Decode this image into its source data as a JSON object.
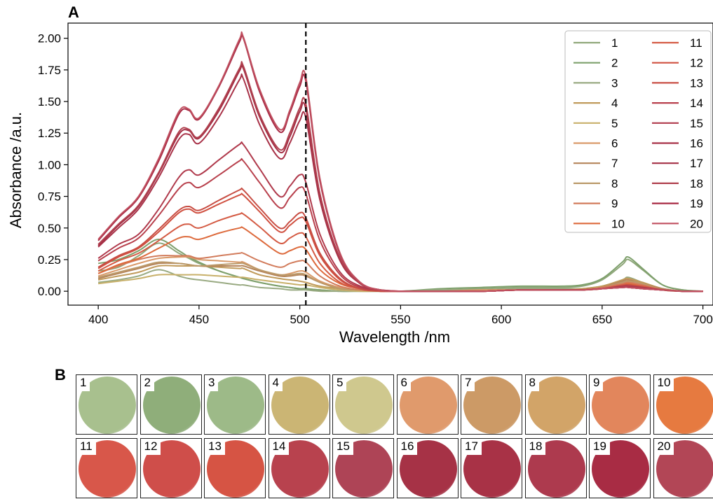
{
  "panel_a_label": "A",
  "panel_b_label": "B",
  "chart_data": {
    "type": "line",
    "xlabel": "Wavelength /nm",
    "ylabel": "Absorbance /a.u.",
    "xlim": [
      385,
      705
    ],
    "ylim": [
      -0.11,
      2.12
    ],
    "xticks": [
      400,
      450,
      500,
      550,
      600,
      650,
      700
    ],
    "yticks": [
      0.0,
      0.25,
      0.5,
      0.75,
      1.0,
      1.25,
      1.5,
      1.75,
      2.0
    ],
    "xtick_labels": [
      "400",
      "450",
      "500",
      "550",
      "600",
      "650",
      "700"
    ],
    "ytick_labels": [
      "0.00",
      "0.25",
      "0.50",
      "0.75",
      "1.00",
      "1.25",
      "1.50",
      "1.75",
      "2.00"
    ],
    "vline_x": 503,
    "legend_position": "top-right",
    "legend_columns": 2,
    "x": [
      400,
      410,
      420,
      430,
      440,
      445,
      450,
      460,
      470,
      472,
      480,
      490,
      495,
      500,
      503,
      510,
      520,
      530,
      540,
      550,
      570,
      590,
      610,
      630,
      640,
      650,
      660,
      663,
      670,
      680,
      690,
      700
    ],
    "series": [
      {
        "name": "1",
        "color": "#8fa77a",
        "values": [
          0.16,
          0.19,
          0.28,
          0.38,
          0.3,
          0.26,
          0.22,
          0.16,
          0.11,
          0.1,
          0.07,
          0.04,
          0.03,
          0.02,
          0.02,
          0.01,
          0.0,
          0.0,
          0.0,
          0.0,
          0.01,
          0.02,
          0.03,
          0.03,
          0.04,
          0.09,
          0.21,
          0.25,
          0.17,
          0.05,
          0.01,
          0.0
        ]
      },
      {
        "name": "2",
        "color": "#7ea06c",
        "values": [
          0.22,
          0.25,
          0.32,
          0.41,
          0.32,
          0.27,
          0.23,
          0.16,
          0.11,
          0.1,
          0.07,
          0.04,
          0.03,
          0.02,
          0.02,
          0.01,
          0.0,
          0.0,
          0.0,
          0.0,
          0.02,
          0.03,
          0.04,
          0.04,
          0.05,
          0.1,
          0.23,
          0.27,
          0.18,
          0.05,
          0.01,
          0.0
        ]
      },
      {
        "name": "3",
        "color": "#99aa82",
        "values": [
          0.07,
          0.09,
          0.12,
          0.17,
          0.12,
          0.1,
          0.09,
          0.07,
          0.05,
          0.05,
          0.03,
          0.02,
          0.01,
          0.01,
          0.01,
          0.0,
          0.0,
          0.0,
          0.0,
          0.0,
          0.01,
          0.01,
          0.02,
          0.02,
          0.02,
          0.04,
          0.09,
          0.11,
          0.07,
          0.02,
          0.0,
          0.0
        ]
      },
      {
        "name": "4",
        "color": "#c09a5a",
        "values": [
          0.09,
          0.12,
          0.15,
          0.2,
          0.2,
          0.2,
          0.2,
          0.19,
          0.18,
          0.18,
          0.13,
          0.1,
          0.09,
          0.08,
          0.07,
          0.04,
          0.02,
          0.01,
          0.0,
          0.0,
          0.0,
          0.01,
          0.01,
          0.01,
          0.02,
          0.04,
          0.09,
          0.1,
          0.07,
          0.02,
          0.0,
          0.0
        ]
      },
      {
        "name": "5",
        "color": "#c8b06a",
        "values": [
          0.06,
          0.08,
          0.1,
          0.13,
          0.13,
          0.13,
          0.13,
          0.12,
          0.11,
          0.11,
          0.09,
          0.07,
          0.06,
          0.05,
          0.05,
          0.03,
          0.01,
          0.0,
          0.0,
          0.0,
          0.0,
          0.0,
          0.01,
          0.01,
          0.01,
          0.03,
          0.06,
          0.07,
          0.05,
          0.01,
          0.0,
          0.0
        ]
      },
      {
        "name": "6",
        "color": "#d99a6a",
        "values": [
          0.12,
          0.17,
          0.22,
          0.26,
          0.27,
          0.27,
          0.25,
          0.24,
          0.23,
          0.23,
          0.17,
          0.13,
          0.14,
          0.16,
          0.15,
          0.08,
          0.03,
          0.01,
          0.0,
          0.0,
          0.0,
          0.01,
          0.01,
          0.01,
          0.01,
          0.03,
          0.07,
          0.08,
          0.05,
          0.01,
          0.0,
          0.0
        ]
      },
      {
        "name": "7",
        "color": "#b5845a",
        "values": [
          0.1,
          0.14,
          0.18,
          0.22,
          0.22,
          0.21,
          0.2,
          0.2,
          0.2,
          0.2,
          0.16,
          0.12,
          0.12,
          0.13,
          0.12,
          0.07,
          0.02,
          0.01,
          0.0,
          0.0,
          0.0,
          0.0,
          0.01,
          0.01,
          0.01,
          0.03,
          0.08,
          0.09,
          0.06,
          0.02,
          0.0,
          0.0
        ]
      },
      {
        "name": "8",
        "color": "#bb9a6a",
        "values": [
          0.11,
          0.15,
          0.19,
          0.23,
          0.22,
          0.21,
          0.2,
          0.21,
          0.22,
          0.22,
          0.17,
          0.13,
          0.13,
          0.14,
          0.13,
          0.07,
          0.02,
          0.01,
          0.0,
          0.0,
          0.0,
          0.0,
          0.01,
          0.01,
          0.01,
          0.03,
          0.07,
          0.08,
          0.06,
          0.01,
          0.0,
          0.0
        ]
      },
      {
        "name": "9",
        "color": "#d27c5c",
        "values": [
          0.14,
          0.2,
          0.25,
          0.28,
          0.28,
          0.28,
          0.26,
          0.28,
          0.3,
          0.3,
          0.24,
          0.19,
          0.22,
          0.24,
          0.23,
          0.12,
          0.04,
          0.01,
          0.0,
          0.0,
          0.0,
          0.0,
          0.01,
          0.01,
          0.01,
          0.03,
          0.06,
          0.07,
          0.05,
          0.01,
          0.0,
          0.0
        ]
      },
      {
        "name": "10",
        "color": "#dd6a3c",
        "values": [
          0.14,
          0.21,
          0.26,
          0.34,
          0.42,
          0.43,
          0.41,
          0.46,
          0.5,
          0.5,
          0.41,
          0.3,
          0.32,
          0.35,
          0.33,
          0.17,
          0.06,
          0.02,
          0.0,
          0.0,
          0.0,
          0.0,
          0.01,
          0.01,
          0.01,
          0.02,
          0.05,
          0.06,
          0.04,
          0.01,
          0.0,
          0.0
        ]
      },
      {
        "name": "11",
        "color": "#d45b44",
        "values": [
          0.16,
          0.24,
          0.3,
          0.4,
          0.51,
          0.53,
          0.5,
          0.56,
          0.61,
          0.61,
          0.51,
          0.38,
          0.42,
          0.46,
          0.43,
          0.22,
          0.07,
          0.02,
          0.0,
          0.0,
          0.0,
          0.0,
          0.01,
          0.01,
          0.01,
          0.02,
          0.05,
          0.05,
          0.04,
          0.01,
          0.0,
          0.0
        ]
      },
      {
        "name": "12",
        "color": "#d05040",
        "values": [
          0.18,
          0.27,
          0.34,
          0.47,
          0.62,
          0.65,
          0.62,
          0.69,
          0.76,
          0.76,
          0.63,
          0.47,
          0.52,
          0.58,
          0.55,
          0.28,
          0.09,
          0.02,
          0.0,
          0.0,
          0.0,
          0.0,
          0.01,
          0.01,
          0.01,
          0.02,
          0.04,
          0.05,
          0.03,
          0.01,
          0.0,
          0.0
        ]
      },
      {
        "name": "13",
        "color": "#c84e44",
        "values": [
          0.19,
          0.28,
          0.35,
          0.49,
          0.64,
          0.67,
          0.64,
          0.72,
          0.8,
          0.8,
          0.66,
          0.5,
          0.55,
          0.62,
          0.58,
          0.3,
          0.1,
          0.02,
          0.0,
          0.0,
          0.0,
          0.0,
          0.01,
          0.01,
          0.01,
          0.02,
          0.04,
          0.05,
          0.03,
          0.01,
          0.0,
          0.0
        ]
      },
      {
        "name": "14",
        "color": "#b8404c",
        "values": [
          0.24,
          0.34,
          0.42,
          0.6,
          0.81,
          0.86,
          0.82,
          0.92,
          1.03,
          1.03,
          0.86,
          0.66,
          0.74,
          0.82,
          0.77,
          0.4,
          0.13,
          0.03,
          0.01,
          0.0,
          0.0,
          0.0,
          0.01,
          0.01,
          0.01,
          0.02,
          0.04,
          0.04,
          0.03,
          0.01,
          0.0,
          0.0
        ]
      },
      {
        "name": "15",
        "color": "#b03a4c",
        "values": [
          0.26,
          0.37,
          0.45,
          0.65,
          0.9,
          0.96,
          0.92,
          1.04,
          1.16,
          1.16,
          0.97,
          0.75,
          0.83,
          0.92,
          0.86,
          0.45,
          0.15,
          0.04,
          0.01,
          0.0,
          0.0,
          0.0,
          0.01,
          0.01,
          0.01,
          0.02,
          0.04,
          0.04,
          0.03,
          0.01,
          0.0,
          0.0
        ]
      },
      {
        "name": "16",
        "color": "#a83248",
        "values": [
          0.35,
          0.5,
          0.65,
          0.9,
          1.2,
          1.24,
          1.17,
          1.38,
          1.67,
          1.68,
          1.32,
          1.05,
          1.17,
          1.35,
          1.37,
          0.72,
          0.24,
          0.06,
          0.01,
          0.0,
          0.0,
          0.0,
          0.01,
          0.01,
          0.01,
          0.02,
          0.03,
          0.03,
          0.02,
          0.01,
          0.0,
          0.0
        ]
      },
      {
        "name": "17",
        "color": "#a43046",
        "values": [
          0.36,
          0.52,
          0.67,
          0.93,
          1.24,
          1.27,
          1.21,
          1.43,
          1.74,
          1.76,
          1.38,
          1.1,
          1.22,
          1.42,
          1.44,
          0.75,
          0.25,
          0.06,
          0.01,
          0.0,
          0.0,
          0.0,
          0.01,
          0.01,
          0.01,
          0.02,
          0.03,
          0.03,
          0.02,
          0.01,
          0.0,
          0.0
        ]
      },
      {
        "name": "18",
        "color": "#b0404e",
        "values": [
          0.37,
          0.53,
          0.68,
          0.94,
          1.26,
          1.28,
          1.22,
          1.45,
          1.76,
          1.78,
          1.4,
          1.12,
          1.25,
          1.45,
          1.48,
          0.77,
          0.26,
          0.06,
          0.01,
          0.0,
          0.0,
          0.0,
          0.01,
          0.01,
          0.01,
          0.02,
          0.03,
          0.03,
          0.02,
          0.01,
          0.0,
          0.0
        ]
      },
      {
        "name": "19",
        "color": "#a82a44",
        "values": [
          0.4,
          0.58,
          0.74,
          1.03,
          1.4,
          1.43,
          1.36,
          1.62,
          1.97,
          2.0,
          1.58,
          1.26,
          1.41,
          1.62,
          1.66,
          0.87,
          0.29,
          0.07,
          0.01,
          0.0,
          0.0,
          0.0,
          0.01,
          0.01,
          0.01,
          0.02,
          0.03,
          0.03,
          0.02,
          0.01,
          0.0,
          0.0
        ]
      },
      {
        "name": "20",
        "color": "#c05060",
        "values": [
          0.41,
          0.59,
          0.75,
          1.05,
          1.42,
          1.44,
          1.37,
          1.63,
          1.99,
          2.01,
          1.6,
          1.28,
          1.43,
          1.65,
          1.69,
          0.89,
          0.3,
          0.07,
          0.01,
          0.0,
          0.0,
          0.0,
          0.01,
          0.01,
          0.01,
          0.02,
          0.03,
          0.03,
          0.02,
          0.01,
          0.0,
          0.0
        ]
      }
    ]
  },
  "swatches": [
    {
      "label": "1",
      "color": "#a8c08e"
    },
    {
      "label": "2",
      "color": "#8fae7a"
    },
    {
      "label": "3",
      "color": "#9dba88"
    },
    {
      "label": "4",
      "color": "#cbb574"
    },
    {
      "label": "5",
      "color": "#cfc88e"
    },
    {
      "label": "6",
      "color": "#e09a6c"
    },
    {
      "label": "7",
      "color": "#cc9a66"
    },
    {
      "label": "8",
      "color": "#d2a468"
    },
    {
      "label": "9",
      "color": "#e2865c"
    },
    {
      "label": "10",
      "color": "#e67a40"
    },
    {
      "label": "11",
      "color": "#d8574a"
    },
    {
      "label": "12",
      "color": "#cf4e4a"
    },
    {
      "label": "13",
      "color": "#d65444"
    },
    {
      "label": "14",
      "color": "#b8424e"
    },
    {
      "label": "15",
      "color": "#ae4456"
    },
    {
      "label": "16",
      "color": "#a63246"
    },
    {
      "label": "17",
      "color": "#a83246"
    },
    {
      "label": "18",
      "color": "#ad3a4e"
    },
    {
      "label": "19",
      "color": "#a82c44"
    },
    {
      "label": "20",
      "color": "#b24656"
    }
  ]
}
